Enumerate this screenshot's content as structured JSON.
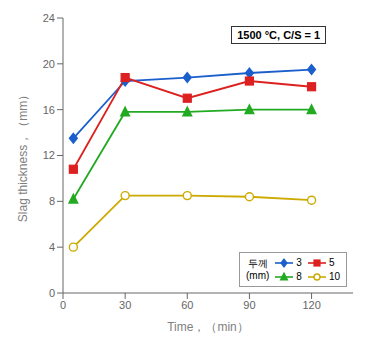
{
  "chart_data": {
    "type": "line",
    "title": "1500 °C, C/S = 1",
    "xlabel": "Time，（min）",
    "ylabel": "Slag  thickness，（mm）",
    "xlim": [
      0,
      140
    ],
    "ylim": [
      0,
      24
    ],
    "xticks": [
      0,
      30,
      60,
      90,
      120
    ],
    "yticks": [
      0,
      4,
      8,
      12,
      16,
      20,
      24
    ],
    "grid": false,
    "legend": "lower right",
    "legend_title": "두께\n(mm)",
    "series": [
      {
        "name": "3",
        "color": "#1a5fcc",
        "marker": "diamond",
        "x": [
          5,
          30,
          60,
          90,
          120
        ],
        "values": [
          13.5,
          18.5,
          18.8,
          19.2,
          19.5
        ]
      },
      {
        "name": "5",
        "color": "#dd2020",
        "marker": "square",
        "x": [
          5,
          30,
          60,
          90,
          120
        ],
        "values": [
          10.8,
          18.8,
          17.0,
          18.5,
          18.0
        ]
      },
      {
        "name": "8",
        "color": "#22aa22",
        "marker": "triangle",
        "x": [
          5,
          30,
          60,
          90,
          120
        ],
        "values": [
          8.2,
          15.8,
          15.8,
          16.0,
          16.0
        ]
      },
      {
        "name": "10",
        "color": "#ccaa00",
        "marker": "open_circle",
        "x": [
          5,
          30,
          60,
          90,
          120
        ],
        "values": [
          4.0,
          8.5,
          8.5,
          8.4,
          8.1
        ]
      }
    ]
  }
}
